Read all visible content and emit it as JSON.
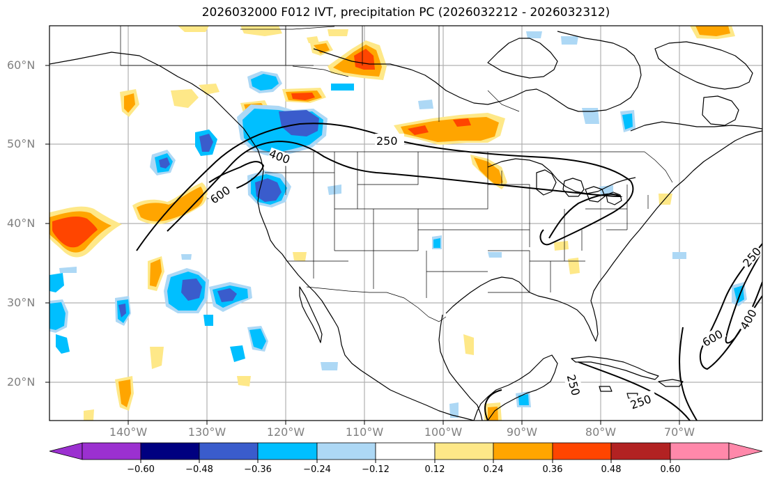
{
  "title": "2026032000 F012 IVT, precipitation PC (2026032212 - 2026032312)",
  "lat_labels": [
    "60°N",
    "50°N",
    "40°N",
    "30°N",
    "20°N"
  ],
  "lon_labels": [
    "140°W",
    "130°W",
    "120°W",
    "110°W",
    "100°W",
    "90°W",
    "80°W",
    "70°W"
  ],
  "ivt_contour_labels": [
    "250",
    "400",
    "600",
    "250",
    "400",
    "600",
    "250",
    "250"
  ],
  "colorbar": {
    "tick_labels": [
      "−0.60",
      "−0.48",
      "−0.36",
      "−0.24",
      "−0.12",
      "0.12",
      "0.24",
      "0.36",
      "0.48",
      "0.60"
    ],
    "colors": [
      "#9b30d0",
      "#000080",
      "#3a5ccc",
      "#00bfff",
      "#add8f5",
      "#ffffff",
      "#fee888",
      "#ffa500",
      "#ff4500",
      "#b22222",
      "#ff88aa"
    ]
  },
  "colors": {
    "land_outline": "#000000",
    "gridline": "#b0b0b0",
    "axis_label": "#808080",
    "contour": "#000000"
  }
}
